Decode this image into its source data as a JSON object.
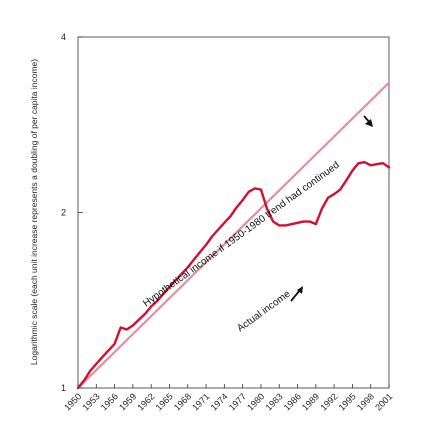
{
  "chart_data": {
    "type": "line",
    "title": "",
    "xlabel": "",
    "ylabel": "Logarithmic scale (each unit increase represents a doubling of per capita income)",
    "y_scale": "log2",
    "ylim": [
      1,
      4
    ],
    "xlim": [
      1950,
      2001
    ],
    "y_ticks": [
      "1",
      "2",
      "4"
    ],
    "x_ticks": [
      "1950",
      "1953",
      "1956",
      "1959",
      "1962",
      "1965",
      "1968",
      "1971",
      "1974",
      "1977",
      "1980",
      "1983",
      "1986",
      "1989",
      "1992",
      "1995",
      "1998",
      "2001"
    ],
    "grid": false,
    "series": [
      {
        "name": "Actual income",
        "color": "#d0102f",
        "x": [
          1950,
          1951,
          1952,
          1953,
          1954,
          1955,
          1956,
          1957,
          1958,
          1959,
          1960,
          1961,
          1962,
          1963,
          1964,
          1965,
          1966,
          1967,
          1968,
          1969,
          1970,
          1971,
          1972,
          1973,
          1974,
          1975,
          1976,
          1977,
          1978,
          1979,
          1980,
          1981,
          1982,
          1983,
          1984,
          1985,
          1986,
          1987,
          1988,
          1989,
          1990,
          1991,
          1992,
          1993,
          1994,
          1995,
          1996,
          1997,
          1998,
          1999,
          2000,
          2001
        ],
        "values": [
          1.0,
          1.03,
          1.07,
          1.1,
          1.13,
          1.16,
          1.19,
          1.27,
          1.26,
          1.28,
          1.31,
          1.34,
          1.38,
          1.41,
          1.45,
          1.49,
          1.53,
          1.57,
          1.61,
          1.66,
          1.71,
          1.76,
          1.82,
          1.87,
          1.92,
          1.97,
          2.04,
          2.1,
          2.17,
          2.2,
          2.19,
          2.03,
          1.93,
          1.9,
          1.9,
          1.91,
          1.92,
          1.93,
          1.93,
          1.91,
          2.03,
          2.12,
          2.15,
          2.19,
          2.27,
          2.36,
          2.43,
          2.44,
          2.41,
          2.42,
          2.43,
          2.39
        ]
      },
      {
        "name": "Hypothetical income if 1950-1980 trend had continued",
        "color": "#e38e9e",
        "x": [
          1950,
          2001
        ],
        "values": [
          1.0,
          3.34
        ]
      }
    ],
    "annotations": [
      {
        "text": "Hypothetical income if 1950-1980 trend had continued"
      },
      {
        "text": "Actual income"
      }
    ]
  }
}
